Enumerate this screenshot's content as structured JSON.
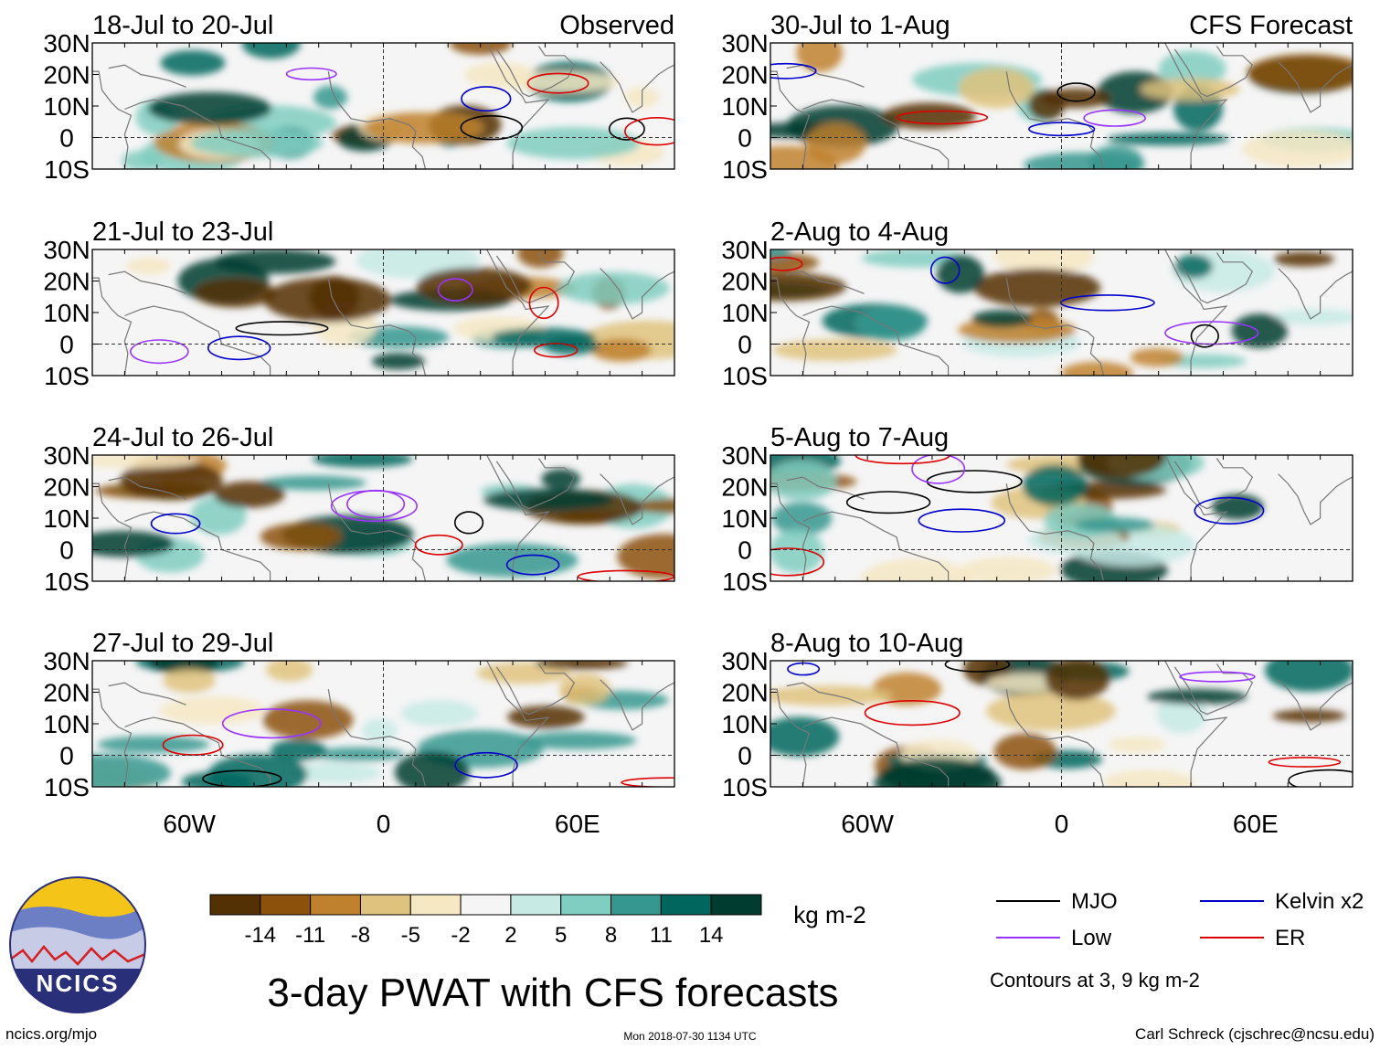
{
  "chart_data": {
    "type": "heatmap",
    "title": "3-day PWAT with CFS forecasts",
    "units": "kg m-2",
    "columns": [
      {
        "header": "Observed",
        "panels": [
          "18-Jul to 20-Jul",
          "21-Jul to 23-Jul",
          "24-Jul to 26-Jul",
          "27-Jul to 29-Jul"
        ]
      },
      {
        "header": "CFS Forecast",
        "panels": [
          "30-Jul to 1-Aug",
          "2-Aug to 4-Aug",
          "5-Aug to 7-Aug",
          "8-Aug to 10-Aug"
        ]
      }
    ],
    "lon_range": [
      -90,
      90
    ],
    "lat_range": [
      -10,
      30
    ],
    "x_ticks": [
      {
        "value": -60,
        "label": "60W"
      },
      {
        "value": 0,
        "label": "0"
      },
      {
        "value": 60,
        "label": "60E"
      }
    ],
    "y_ticks": [
      {
        "value": 30,
        "label": "30N"
      },
      {
        "value": 20,
        "label": "20N"
      },
      {
        "value": 10,
        "label": "10N"
      },
      {
        "value": 0,
        "label": "0"
      },
      {
        "value": -10,
        "label": "10S"
      }
    ],
    "colorbar": {
      "labels": [
        "-14",
        "-11",
        "-8",
        "-5",
        "-2",
        "2",
        "5",
        "8",
        "11",
        "14"
      ],
      "colors": [
        "#543005",
        "#8c510a",
        "#bf812d",
        "#dfc27d",
        "#f6e8c3",
        "#f5f5f5",
        "#c7eae5",
        "#80cdc1",
        "#35978f",
        "#01665e",
        "#003c30"
      ]
    },
    "legend": [
      {
        "label": "MJO",
        "color": "#000000"
      },
      {
        "label": "Kelvin x2",
        "color": "#0000cc"
      },
      {
        "label": "Low",
        "color": "#9933ff"
      },
      {
        "label": "ER",
        "color": "#dd0000"
      }
    ],
    "contour_note": "Contours at 3, 9 kg m-2"
  },
  "footer": {
    "logo_text": "NCICS",
    "url": "ncics.org/mjo",
    "timestamp": "Mon 2018-07-30 1134 UTC",
    "credit": "Carl Schreck (cjschrec@ncsu.edu)"
  }
}
